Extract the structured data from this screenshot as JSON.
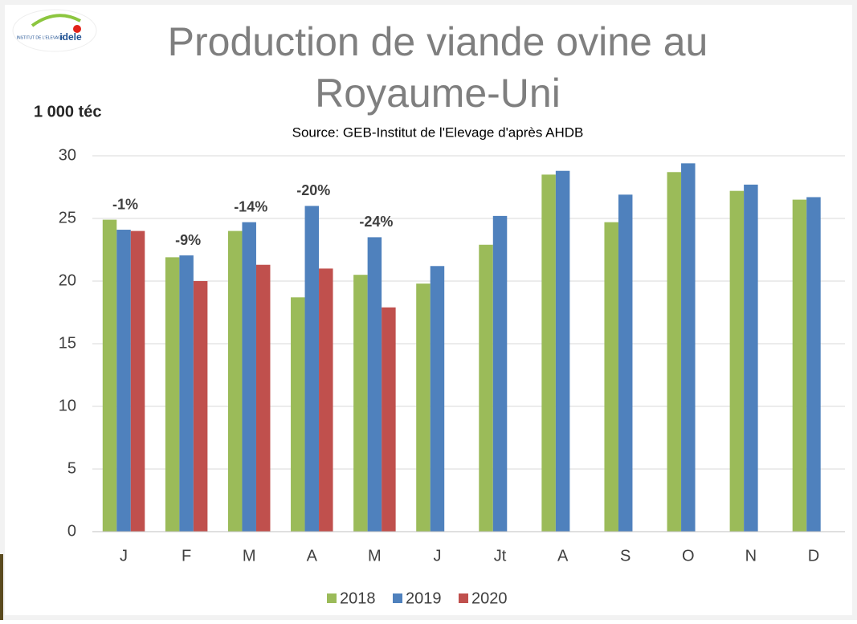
{
  "logo": {
    "small": "INSTITUT DE L'ELEVAGE",
    "brand": "idele"
  },
  "chart_data": {
    "type": "bar",
    "title": "Production de viande ovine au Royaume-Uni",
    "title_lines": [
      "Production de viande ovine au",
      "Royaume-Uni"
    ],
    "subtitle": "Source: GEB-Institut de l'Elevage d'après AHDB",
    "y_label": "1 000 téc",
    "categories": [
      "J",
      "F",
      "M",
      "A",
      "M",
      "J",
      "Jt",
      "A",
      "S",
      "O",
      "N",
      "D"
    ],
    "series": [
      {
        "name": "2018",
        "color": "#9bbb59",
        "values": [
          24.9,
          21.9,
          24.0,
          18.7,
          20.5,
          19.8,
          22.9,
          28.5,
          24.7,
          28.7,
          27.2,
          26.5
        ]
      },
      {
        "name": "2019",
        "color": "#4f81bd",
        "values": [
          24.1,
          22.05,
          24.7,
          26.0,
          23.5,
          21.2,
          25.2,
          28.8,
          26.9,
          29.4,
          27.7,
          26.7
        ]
      },
      {
        "name": "2020",
        "color": "#c0504d",
        "values": [
          24.0,
          20.0,
          21.3,
          21.0,
          17.9,
          null,
          null,
          null,
          null,
          null,
          null,
          null
        ]
      }
    ],
    "annotations": [
      "-1%",
      "-9%",
      "-14%",
      "-20%",
      "-24%"
    ],
    "ylim": [
      0,
      30
    ],
    "yticks": [
      0,
      5,
      10,
      15,
      20,
      25,
      30
    ],
    "grid": true,
    "legend": "bottom"
  }
}
